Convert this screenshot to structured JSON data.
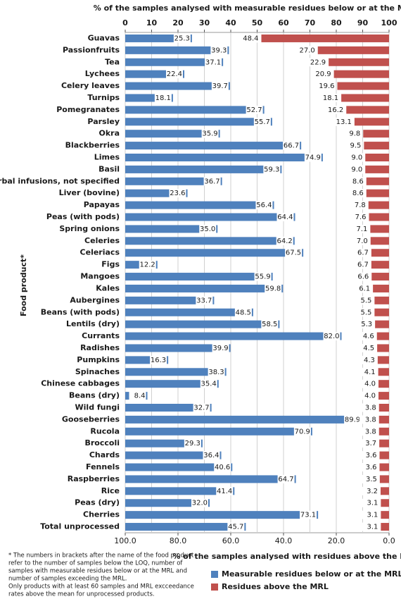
{
  "chart_data": {
    "type": "bar",
    "orientation": "horizontal",
    "title": "% of the samples analysed with measurable residues below or at the MRL",
    "x2_label": "% of the samples analysed with residues above the MRL",
    "y_label": "Food product*",
    "categories": [
      "Guavas",
      "Passionfruits",
      "Tea",
      "Lychees",
      "Celery leaves",
      "Turnips",
      "Pomegranates",
      "Parsley",
      "Okra",
      "Blackberries",
      "Limes",
      "Basil",
      "Herbal infusions, not specified",
      "Liver (bovine)",
      "Papayas",
      "Peas (with pods)",
      "Spring onions",
      "Celeries",
      "Celeriacs",
      "Figs",
      "Mangoes",
      "Kales",
      "Aubergines",
      "Beans (with pods)",
      "Lentils (dry)",
      "Currants",
      "Radishes",
      "Pumpkins",
      "Spinaches",
      "Chinese cabbages",
      "Beans (dry)",
      "Wild fungi",
      "Gooseberries",
      "Rucola",
      "Broccoli",
      "Chards",
      "Fennels",
      "Raspberries",
      "Rice",
      "Peas (dry)",
      "Cherries",
      "Total unprocessed"
    ],
    "series": [
      {
        "name": "Measurable residues below or at the MRL",
        "color": "#4f81bd",
        "axis": "x",
        "values": [
          25.3,
          39.3,
          37.1,
          22.4,
          39.7,
          18.1,
          52.7,
          55.7,
          35.9,
          66.7,
          74.9,
          59.3,
          36.7,
          23.6,
          56.4,
          64.4,
          35.0,
          64.2,
          67.5,
          12.2,
          55.9,
          59.8,
          33.7,
          48.5,
          58.5,
          82.0,
          39.9,
          16.3,
          38.3,
          35.4,
          8.4,
          32.7,
          89.9,
          70.9,
          29.3,
          36.4,
          40.6,
          64.7,
          41.4,
          32.0,
          73.1,
          45.7
        ],
        "value_labels": [
          "25.3",
          "39.3",
          "37.1",
          "22.4",
          "39.7",
          "18.1",
          "52.7",
          "55.7",
          "35.9",
          "66.7",
          "74.9",
          "59.3",
          "36.7",
          "23.6",
          "56.4",
          "64.4",
          "35.0",
          "64.2",
          "67.5",
          "12.2",
          "55.9",
          "59.8",
          "33.7",
          "48.5",
          "58.5",
          "82.0",
          "39.9",
          "16.3",
          "38.3",
          "35.4",
          "8.4",
          "32.7",
          "89.9",
          "70.9",
          "29.3",
          "36.4",
          "40.6",
          "64.7",
          "41.4",
          "32.0",
          "73.1",
          "45.7"
        ]
      },
      {
        "name": "Residues above the MRL",
        "color": "#c0504d",
        "axis": "x2",
        "values": [
          48.4,
          27.0,
          22.9,
          20.9,
          19.6,
          18.1,
          16.2,
          13.1,
          9.8,
          9.5,
          9.0,
          9.0,
          8.6,
          8.6,
          7.8,
          7.6,
          7.1,
          7.0,
          6.7,
          6.7,
          6.6,
          6.1,
          5.5,
          5.5,
          5.3,
          4.6,
          4.5,
          4.3,
          4.1,
          4.0,
          4.0,
          3.8,
          3.8,
          3.8,
          3.7,
          3.6,
          3.6,
          3.5,
          3.2,
          3.1,
          3.1,
          3.1
        ],
        "value_labels": [
          "48.4",
          "27.0",
          "22.9",
          "20.9",
          "19.6",
          "18.1",
          "16.2",
          "13.1",
          "9.8",
          "9.5",
          "9.0",
          "9.0",
          "8.6",
          "8.6",
          "7.8",
          "7.6",
          "7.1",
          "7.0",
          "6.7",
          "6.7",
          "6.6",
          "6.1",
          "5.5",
          "5.5",
          "5.3",
          "4.6",
          "4.5",
          "4.3",
          "4.1",
          "4.0",
          "4.0",
          "3.8",
          "3.8",
          "3.8",
          "3.7",
          "3.6",
          "3.6",
          "3.5",
          "3.2",
          "3.1",
          "3.1",
          "3.1"
        ]
      }
    ],
    "xlim": [
      0,
      100
    ],
    "xticks": [
      0,
      10,
      20,
      30,
      40,
      50,
      60,
      70,
      80,
      90,
      100
    ],
    "x2lim": [
      100,
      0
    ],
    "x2ticks": [
      {
        "value": 100,
        "label": "100.0"
      },
      {
        "value": 80,
        "label": "80.0"
      },
      {
        "value": 60,
        "label": "60.0"
      },
      {
        "value": 40,
        "label": "40.0"
      },
      {
        "value": 20,
        "label": "20.0"
      },
      {
        "value": 0,
        "label": "0.0"
      }
    ],
    "grid": true,
    "footnote": [
      "* The numbers in brackets after the name of the food product",
      "refer to the number of samples below the LOQ, number of",
      "samples with measurable residues below or at the MRL and",
      "number of samples exceeding the MRL.",
      "Only products with at least 60 samples and  MRL excceedance",
      "rates above the mean for unprocessed products."
    ]
  }
}
